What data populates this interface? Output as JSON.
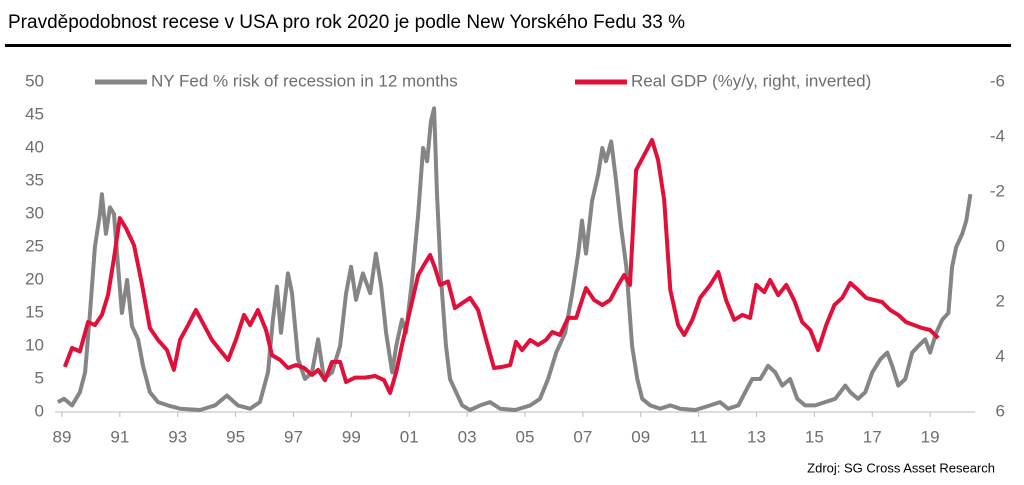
{
  "chart_data": {
    "type": "line",
    "title": "Pravděpodobnost recese v USA pro rok 2020 je podle New Yorského Fedu 33 %",
    "source": "Zdroj: SG Cross Asset Research",
    "xlim": [
      1988.76,
      2020.55
    ],
    "xticks": [
      {
        "value": 1989,
        "label": "89"
      },
      {
        "value": 1991,
        "label": "91"
      },
      {
        "value": 1993,
        "label": "93"
      },
      {
        "value": 1995,
        "label": "95"
      },
      {
        "value": 1997,
        "label": "97"
      },
      {
        "value": 1999,
        "label": "99"
      },
      {
        "value": 2001,
        "label": "01"
      },
      {
        "value": 2003,
        "label": "03"
      },
      {
        "value": 2005,
        "label": "05"
      },
      {
        "value": 2007,
        "label": "07"
      },
      {
        "value": 2009,
        "label": "09"
      },
      {
        "value": 2011,
        "label": "11"
      },
      {
        "value": 2013,
        "label": "13"
      },
      {
        "value": 2015,
        "label": "15"
      },
      {
        "value": 2017,
        "label": "17"
      },
      {
        "value": 2019,
        "label": "19"
      }
    ],
    "ylim": [
      0,
      50
    ],
    "yticks": [
      0,
      5,
      10,
      15,
      20,
      25,
      30,
      35,
      40,
      45,
      50
    ],
    "y2lim": [
      -6,
      6
    ],
    "y2_inverted": true,
    "y2ticks": [
      -6,
      -4,
      -2,
      0,
      2,
      4,
      6
    ],
    "grid": false,
    "series": [
      {
        "name": "NY Fed % risk of recession in 12 months",
        "color": "#858585",
        "axis": "y",
        "x": [
          1988.86,
          1989.07,
          1989.35,
          1989.62,
          1989.8,
          1989.97,
          1990.14,
          1990.31,
          1990.38,
          1990.52,
          1990.66,
          1990.8,
          1990.94,
          1991.07,
          1991.25,
          1991.42,
          1991.63,
          1991.8,
          1992.04,
          1992.32,
          1992.66,
          1993.08,
          1993.77,
          1994.29,
          1994.7,
          1995.08,
          1995.5,
          1995.84,
          1996.12,
          1996.29,
          1996.43,
          1996.57,
          1996.81,
          1996.95,
          1997.16,
          1997.4,
          1997.64,
          1997.85,
          1998.06,
          1998.33,
          1998.61,
          1998.82,
          1998.99,
          1999.16,
          1999.4,
          1999.65,
          1999.85,
          2000.03,
          2000.2,
          2000.41,
          2000.55,
          2000.75,
          2000.89,
          2001.1,
          2001.31,
          2001.48,
          2001.62,
          2001.75,
          2001.86,
          2001.96,
          2002.1,
          2002.27,
          2002.41,
          2002.62,
          2002.83,
          2003.1,
          2003.45,
          2003.79,
          2004.14,
          2004.66,
          2005.18,
          2005.52,
          2005.8,
          2006.08,
          2006.39,
          2006.63,
          2006.84,
          2006.97,
          2007.11,
          2007.32,
          2007.53,
          2007.67,
          2007.8,
          2007.98,
          2008.15,
          2008.32,
          2008.5,
          2008.7,
          2008.88,
          2009.05,
          2009.33,
          2009.67,
          2010.02,
          2010.36,
          2010.88,
          2011.4,
          2011.74,
          2012.02,
          2012.37,
          2012.61,
          2012.85,
          2013.13,
          2013.4,
          2013.65,
          2013.89,
          2014.16,
          2014.41,
          2014.68,
          2015.03,
          2015.37,
          2015.72,
          2016.07,
          2016.24,
          2016.51,
          2016.76,
          2017.0,
          2017.28,
          2017.52,
          2017.69,
          2017.9,
          2018.14,
          2018.38,
          2018.59,
          2018.83,
          2019.0,
          2019.21,
          2019.42,
          2019.63,
          2019.76,
          2019.9,
          2020.11,
          2020.25,
          2020.39
        ],
        "values": [
          1.5,
          2,
          1,
          3,
          6,
          15,
          25,
          30,
          33,
          27,
          31,
          30,
          22,
          15,
          20,
          13,
          11,
          7,
          3,
          1.5,
          1,
          0.5,
          0.3,
          1,
          2.5,
          1,
          0.5,
          1.5,
          6,
          14,
          19,
          12,
          21,
          18,
          8,
          5,
          6,
          11,
          5,
          6,
          10,
          18,
          22,
          17,
          21,
          18,
          24,
          19,
          12,
          6,
          10,
          14,
          12,
          20,
          30,
          40,
          38,
          44,
          46,
          33,
          20,
          10,
          5,
          3,
          1,
          0.3,
          1,
          1.5,
          0.5,
          0.3,
          1,
          2,
          5,
          9,
          12,
          18,
          24,
          29,
          24,
          32,
          36,
          40,
          38,
          41,
          35,
          28,
          22,
          10,
          5,
          2,
          1,
          0.5,
          1,
          0.5,
          0.3,
          1,
          1.5,
          0.5,
          1,
          3,
          5,
          5,
          7,
          6,
          4,
          5,
          2,
          1,
          1,
          1.5,
          2,
          4,
          3,
          2,
          3,
          6,
          8,
          9,
          7,
          4,
          5,
          9,
          10,
          11,
          9,
          12,
          14,
          15,
          22,
          25,
          27,
          29,
          33
        ]
      },
      {
        "name": "Real GDP (%y/y, right, inverted)",
        "color": "#e0103a",
        "axis": "y2",
        "x": [
          1989.1,
          1989.35,
          1989.62,
          1989.9,
          1990.14,
          1990.38,
          1990.59,
          1990.8,
          1991.0,
          1991.21,
          1991.49,
          1991.77,
          1992.04,
          1992.32,
          1992.63,
          1992.87,
          1993.08,
          1993.36,
          1993.63,
          1993.91,
          1994.18,
          1994.46,
          1994.74,
          1995.01,
          1995.29,
          1995.5,
          1995.77,
          1996.05,
          1996.26,
          1996.54,
          1996.81,
          1997.09,
          1997.37,
          1997.64,
          1997.85,
          1998.09,
          1998.33,
          1998.61,
          1998.82,
          1999.13,
          1999.47,
          1999.82,
          2000.13,
          2000.34,
          2000.55,
          2000.75,
          2001.03,
          2001.31,
          2001.51,
          2001.72,
          2001.89,
          2002.07,
          2002.34,
          2002.58,
          2002.83,
          2003.1,
          2003.38,
          2003.66,
          2003.93,
          2004.21,
          2004.49,
          2004.69,
          2004.9,
          2005.18,
          2005.45,
          2005.73,
          2005.94,
          2006.21,
          2006.49,
          2006.77,
          2006.97,
          2007.11,
          2007.39,
          2007.67,
          2007.94,
          2008.22,
          2008.43,
          2008.63,
          2008.84,
          2009.12,
          2009.39,
          2009.6,
          2009.81,
          2010.02,
          2010.29,
          2010.5,
          2010.78,
          2011.05,
          2011.4,
          2011.68,
          2011.95,
          2012.23,
          2012.51,
          2012.78,
          2012.99,
          2013.27,
          2013.47,
          2013.75,
          2014.03,
          2014.3,
          2014.58,
          2014.86,
          2015.13,
          2015.41,
          2015.69,
          2015.96,
          2016.24,
          2016.51,
          2016.79,
          2017.07,
          2017.34,
          2017.62,
          2017.9,
          2018.17,
          2018.45,
          2018.73,
          2019.0,
          2019.28
        ],
        "values": [
          4.36,
          3.67,
          3.8,
          2.73,
          2.84,
          2.47,
          1.75,
          0.4,
          -1.05,
          -0.69,
          -0.07,
          1.38,
          2.95,
          3.38,
          3.75,
          4.47,
          3.38,
          2.84,
          2.29,
          2.84,
          3.38,
          3.75,
          4.11,
          3.38,
          2.47,
          2.84,
          2.29,
          3.02,
          3.93,
          4.11,
          4.4,
          4.29,
          4.4,
          4.65,
          4.47,
          4.84,
          4.18,
          4.18,
          4.91,
          4.75,
          4.75,
          4.69,
          4.84,
          5.31,
          4.55,
          3.56,
          2.29,
          1.02,
          0.65,
          0.29,
          0.76,
          1.38,
          1.25,
          2.22,
          2.04,
          1.85,
          2.29,
          3.38,
          4.4,
          4.36,
          4.29,
          3.45,
          3.75,
          3.38,
          3.56,
          3.38,
          3.09,
          3.2,
          2.58,
          2.58,
          1.93,
          1.49,
          1.93,
          2.11,
          1.93,
          1.38,
          1.02,
          1.38,
          -2.8,
          -3.35,
          -3.89,
          -3.16,
          -1.71,
          1.56,
          2.84,
          3.2,
          2.65,
          1.85,
          1.38,
          0.91,
          1.93,
          2.65,
          2.47,
          2.58,
          1.38,
          1.64,
          1.2,
          1.75,
          1.38,
          1.93,
          2.73,
          3.02,
          3.75,
          2.84,
          2.11,
          1.85,
          1.31,
          1.56,
          1.85,
          1.93,
          2.0,
          2.29,
          2.47,
          2.73,
          2.84,
          2.95,
          3.02,
          3.31
        ]
      }
    ]
  }
}
